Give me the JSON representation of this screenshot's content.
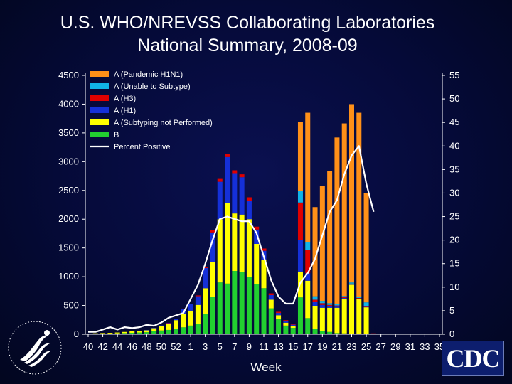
{
  "title": {
    "line1": "U.S. WHO/NREVSS Collaborating Laboratories",
    "line2": "National Summary, 2008-09"
  },
  "chart_data": {
    "type": "bar",
    "stacked": true,
    "xlabel": "Week",
    "ylabel": "",
    "ylim": [
      0,
      4500
    ],
    "y_ticks": [
      0,
      500,
      1000,
      1500,
      2000,
      2500,
      3000,
      3500,
      4000,
      4500
    ],
    "y2lim": [
      0,
      55
    ],
    "y2_ticks": [
      0,
      5,
      10,
      15,
      20,
      25,
      30,
      35,
      40,
      45,
      50,
      55
    ],
    "x_tick_labels": [
      "40",
      "42",
      "44",
      "46",
      "48",
      "50",
      "52",
      "1",
      "3",
      "5",
      "7",
      "9",
      "11",
      "13",
      "15",
      "17",
      "19",
      "21",
      "23",
      "25",
      "27",
      "29",
      "31",
      "33",
      "35"
    ],
    "categories": [
      "40",
      "41",
      "42",
      "43",
      "44",
      "45",
      "46",
      "47",
      "48",
      "49",
      "50",
      "51",
      "52",
      "53",
      "1",
      "2",
      "3",
      "4",
      "5",
      "6",
      "7",
      "8",
      "9",
      "10",
      "11",
      "12",
      "13",
      "14",
      "15",
      "16",
      "17",
      "18",
      "19",
      "20",
      "21",
      "22",
      "23",
      "24",
      "25",
      "26",
      "27",
      "28",
      "29",
      "30",
      "31",
      "32",
      "33",
      "34",
      "35"
    ],
    "grid": false,
    "legend_position": "top-left",
    "series": [
      {
        "name": "B",
        "color": "#22d030",
        "values": [
          5,
          8,
          10,
          12,
          15,
          20,
          25,
          30,
          35,
          50,
          65,
          75,
          95,
          120,
          150,
          180,
          350,
          650,
          900,
          880,
          1100,
          1080,
          1000,
          870,
          800,
          450,
          260,
          150,
          110,
          640,
          280,
          90,
          60,
          40,
          20,
          15,
          10,
          10,
          8,
          5,
          0,
          0,
          0,
          0,
          0,
          0,
          0,
          0,
          0
        ]
      },
      {
        "name": "A (Subtyping not Performed)",
        "color": "#ffff00",
        "values": [
          5,
          8,
          10,
          12,
          15,
          20,
          25,
          30,
          35,
          55,
          80,
          110,
          150,
          240,
          260,
          330,
          450,
          600,
          1100,
          1400,
          1000,
          1000,
          1000,
          700,
          500,
          150,
          70,
          50,
          35,
          450,
          650,
          400,
          400,
          420,
          440,
          600,
          850,
          600,
          460,
          0,
          0,
          0,
          0,
          0,
          0,
          0,
          0,
          0,
          0
        ]
      },
      {
        "name": "A (H1)",
        "color": "#1530d8",
        "values": [
          0,
          0,
          0,
          0,
          0,
          0,
          0,
          2,
          3,
          5,
          8,
          10,
          20,
          80,
          110,
          150,
          350,
          520,
          650,
          800,
          700,
          650,
          320,
          250,
          150,
          80,
          40,
          25,
          20,
          550,
          130,
          70,
          50,
          30,
          20,
          15,
          10,
          10,
          8,
          5,
          0,
          0,
          0,
          0,
          0,
          0,
          0,
          0,
          0
        ]
      },
      {
        "name": "A (H3)",
        "color": "#e00000",
        "values": [
          0,
          0,
          0,
          0,
          0,
          0,
          0,
          0,
          0,
          0,
          0,
          2,
          3,
          6,
          10,
          15,
          20,
          40,
          50,
          50,
          50,
          50,
          60,
          50,
          40,
          30,
          20,
          20,
          15,
          650,
          400,
          40,
          30,
          20,
          20,
          15,
          10,
          10,
          8,
          5,
          0,
          0,
          0,
          0,
          0,
          0,
          0,
          0,
          0
        ]
      },
      {
        "name": "A (Unable to Subtype)",
        "color": "#10b4e8",
        "values": [
          0,
          0,
          0,
          0,
          0,
          0,
          0,
          0,
          0,
          0,
          0,
          0,
          0,
          0,
          0,
          0,
          0,
          0,
          0,
          0,
          0,
          0,
          0,
          0,
          0,
          0,
          0,
          0,
          0,
          200,
          140,
          60,
          40,
          30,
          20,
          20,
          20,
          20,
          70,
          0,
          0,
          0,
          0,
          0,
          0,
          0,
          0,
          0,
          0
        ]
      },
      {
        "name": "A (Pandemic H1N1)",
        "color": "#ff9018",
        "values": [
          0,
          0,
          0,
          0,
          0,
          0,
          0,
          0,
          0,
          0,
          0,
          0,
          0,
          0,
          0,
          0,
          0,
          0,
          0,
          0,
          0,
          0,
          0,
          0,
          0,
          0,
          0,
          0,
          0,
          1200,
          2250,
          1550,
          2000,
          2300,
          2900,
          3000,
          3100,
          3200,
          1900,
          0,
          0,
          0,
          0,
          0,
          0,
          0,
          0,
          0,
          0
        ]
      }
    ],
    "line_series": {
      "name": "Percent Positive",
      "color": "#ffffff",
      "axis": "right",
      "values": [
        0.5,
        0.5,
        1.0,
        1.5,
        1.0,
        1.5,
        1.3,
        1.5,
        2.0,
        1.8,
        2.5,
        3.5,
        4.0,
        4.5,
        7.5,
        10.5,
        15.0,
        20.0,
        24.5,
        25.0,
        24.5,
        24.0,
        24.0,
        21.5,
        16.5,
        11.5,
        8.0,
        6.5,
        6.5,
        11.0,
        13.0,
        16.0,
        21.0,
        26.0,
        28.5,
        34.0,
        38.0,
        40.0,
        32.0,
        26.0
      ]
    }
  },
  "legend": [
    {
      "label": "A (Pandemic H1N1)",
      "color": "#ff9018",
      "kind": "box"
    },
    {
      "label": "A (Unable to Subtype)",
      "color": "#10b4e8",
      "kind": "box"
    },
    {
      "label": "A (H3)",
      "color": "#e00000",
      "kind": "box"
    },
    {
      "label": "A (H1)",
      "color": "#1530d8",
      "kind": "box"
    },
    {
      "label": "A (Subtyping not Performed)",
      "color": "#ffff00",
      "kind": "box"
    },
    {
      "label": "B",
      "color": "#22d030",
      "kind": "box"
    },
    {
      "label": "Percent Positive",
      "color": "#ffffff",
      "kind": "line"
    }
  ],
  "logos": {
    "cdc": "CDC",
    "hhs": "hhs-seal"
  }
}
